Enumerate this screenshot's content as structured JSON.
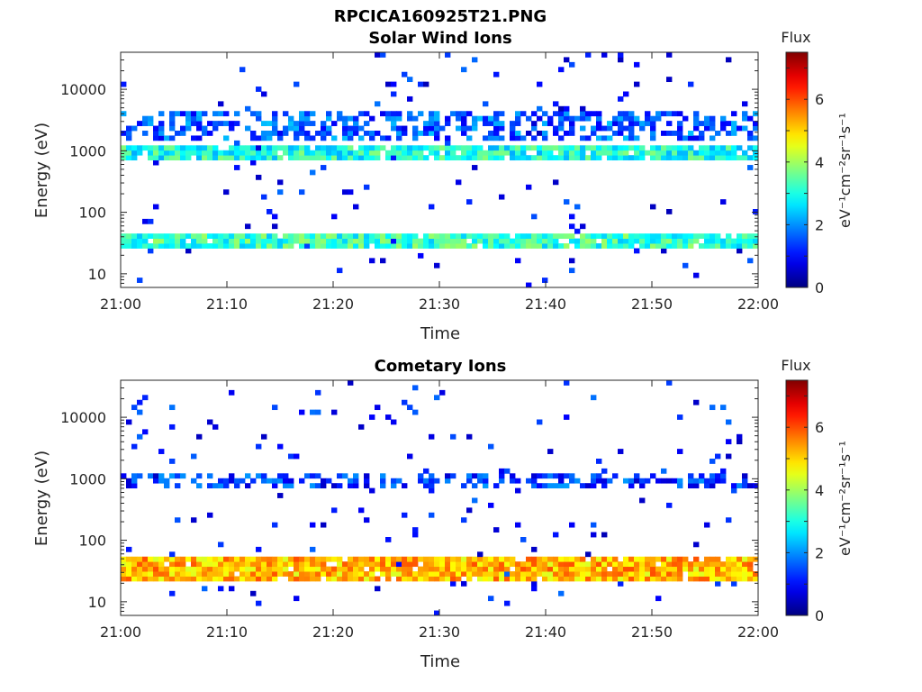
{
  "figure_title": "RPCICA160925T21.PNG",
  "colormap": "jet",
  "chart_data": [
    {
      "type": "heatmap",
      "title": "Solar Wind Ions",
      "xlabel": "Time",
      "ylabel": "Energy (eV)",
      "x_ticks": [
        "21:00",
        "21:10",
        "21:20",
        "21:30",
        "21:40",
        "21:50",
        "22:00"
      ],
      "x_range": [
        "21:00",
        "22:00"
      ],
      "y_ticks": [
        {
          "value": 10,
          "label": "10"
        },
        {
          "value": 100,
          "label": "100"
        },
        {
          "value": 1000,
          "label": "1000"
        },
        {
          "value": 10000,
          "label": "10000"
        }
      ],
      "y_scale": "log",
      "y_range": [
        6,
        40000
      ],
      "colorbar": {
        "title": "Flux",
        "label": "eV⁻¹cm⁻²sr⁻¹s⁻¹",
        "range": [
          0,
          7.5
        ],
        "ticks": [
          "0",
          "2",
          "4",
          "6"
        ]
      },
      "bands": [
        {
          "energy_range": [
            25,
            48
          ],
          "approx_flux": 3.2,
          "time_range": [
            "21:00",
            "22:00"
          ]
        },
        {
          "energy_range": [
            700,
            1300
          ],
          "approx_flux": 3.0,
          "time_range": [
            "21:00",
            "22:00"
          ]
        },
        {
          "energy_range": [
            1500,
            4500
          ],
          "approx_flux": 1.6,
          "time_range": [
            "21:00",
            "22:00"
          ]
        }
      ]
    },
    {
      "type": "heatmap",
      "title": "Cometary Ions",
      "xlabel": "Time",
      "ylabel": "Energy (eV)",
      "x_ticks": [
        "21:00",
        "21:10",
        "21:20",
        "21:30",
        "21:40",
        "21:50",
        "22:00"
      ],
      "x_range": [
        "21:00",
        "22:00"
      ],
      "y_ticks": [
        {
          "value": 10,
          "label": "10"
        },
        {
          "value": 100,
          "label": "100"
        },
        {
          "value": 1000,
          "label": "1000"
        },
        {
          "value": 10000,
          "label": "10000"
        }
      ],
      "y_scale": "log",
      "y_range": [
        6,
        40000
      ],
      "colorbar": {
        "title": "Flux",
        "label": "eV⁻¹cm⁻²sr⁻¹s⁻¹",
        "range": [
          0,
          7.5
        ],
        "ticks": [
          "0",
          "2",
          "4",
          "6"
        ]
      },
      "bands": [
        {
          "energy_range": [
            22,
            55
          ],
          "approx_flux": 5.2,
          "time_range": [
            "21:00",
            "22:00"
          ]
        },
        {
          "energy_range": [
            700,
            1300
          ],
          "approx_flux": 1.3,
          "time_range": [
            "21:00",
            "22:00"
          ]
        }
      ]
    }
  ]
}
